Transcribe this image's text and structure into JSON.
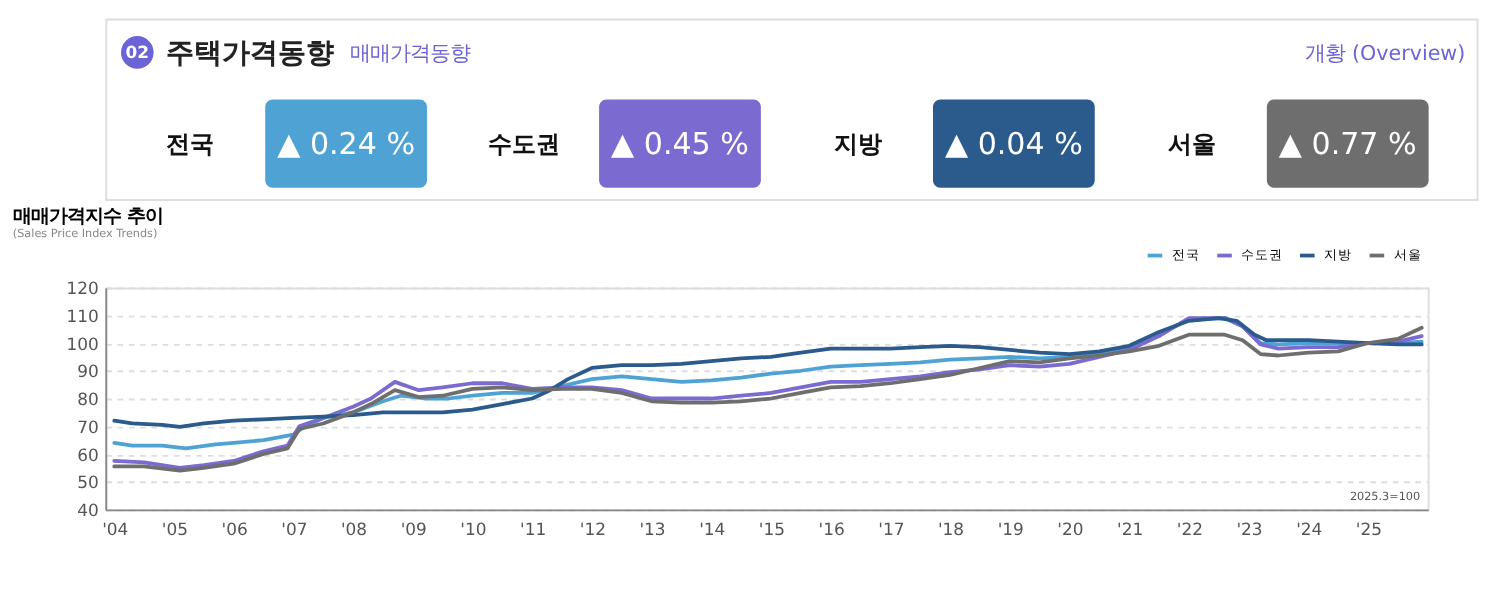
{
  "chart_data": [
    {
      "type": "other",
      "title": "주택가격동향",
      "subtitle": "매매가격동향",
      "annotations": [
        "02",
        "개황 (Overview)"
      ],
      "categories": [
        "전국",
        "수도권",
        "지방",
        "서울"
      ],
      "value_labels": [
        "▲ 0.24 %",
        "▲ 0.45 %",
        "▲ 0.04 %",
        "▲ 0.77 %"
      ],
      "colors": [
        "#4fa3d4",
        "#7b6bd0",
        "#2b5a8c",
        "#6e6e6e"
      ]
    },
    {
      "type": "line",
      "title": "매매가격지수 추이",
      "subtitle": "(Sales Price Index Trends)",
      "annotations": [
        "2025.3=100"
      ],
      "xlim": [
        2003.85,
        2026.0
      ],
      "xticks": [
        {
          "value": 2004,
          "label": "'04"
        },
        {
          "value": 2005,
          "label": "'05"
        },
        {
          "value": 2006,
          "label": "'06"
        },
        {
          "value": 2007,
          "label": "'07"
        },
        {
          "value": 2008,
          "label": "'08"
        },
        {
          "value": 2009,
          "label": "'09"
        },
        {
          "value": 2010,
          "label": "'10"
        },
        {
          "value": 2011,
          "label": "'11"
        },
        {
          "value": 2012,
          "label": "'12"
        },
        {
          "value": 2013,
          "label": "'13"
        },
        {
          "value": 2014,
          "label": "'14"
        },
        {
          "value": 2015,
          "label": "'15"
        },
        {
          "value": 2016,
          "label": "'16"
        },
        {
          "value": 2017,
          "label": "'17"
        },
        {
          "value": 2018,
          "label": "'18"
        },
        {
          "value": 2019,
          "label": "'19"
        },
        {
          "value": 2020,
          "label": "'20"
        },
        {
          "value": 2021,
          "label": "'21"
        },
        {
          "value": 2022,
          "label": "'22"
        },
        {
          "value": 2023,
          "label": "'23"
        },
        {
          "value": 2024,
          "label": "'24"
        },
        {
          "value": 2025,
          "label": "'25"
        }
      ],
      "ylim": [
        40,
        120
      ],
      "yticks": [
        40,
        50,
        60,
        70,
        80,
        90,
        100,
        110,
        120
      ],
      "grid": "y",
      "legend": "top right",
      "marker": "none",
      "line_style": "solid",
      "series": [
        {
          "name": "전국",
          "color": "#4fa3d4",
          "x": [
            2004.0,
            2004.3,
            2004.8,
            2005.2,
            2005.7,
            2006.0,
            2006.5,
            2007.0,
            2007.2,
            2007.5,
            2008.0,
            2008.5,
            2008.8,
            2009.2,
            2009.6,
            2010.0,
            2010.5,
            2011.0,
            2011.5,
            2012.0,
            2012.5,
            2013.0,
            2013.5,
            2014.0,
            2014.5,
            2015.0,
            2015.5,
            2016.0,
            2016.5,
            2017.0,
            2017.5,
            2018.0,
            2018.5,
            2019.0,
            2019.5,
            2020.0,
            2020.5,
            2021.0,
            2021.5,
            2022.0,
            2022.6,
            2022.9,
            2023.2,
            2023.5,
            2024.0,
            2024.5,
            2025.0,
            2025.5,
            2025.9
          ],
          "values": [
            64,
            63,
            63,
            62,
            63.5,
            64,
            65,
            67,
            70,
            73,
            75,
            79,
            81,
            80,
            80,
            81,
            82,
            82,
            84.5,
            87,
            88,
            87,
            86,
            86.5,
            87.5,
            89,
            90,
            91.5,
            92,
            92.5,
            93,
            94,
            94.5,
            95,
            94.5,
            95,
            96,
            98,
            103,
            108.5,
            109,
            106,
            100,
            99.5,
            100,
            100,
            100,
            100,
            100.5
          ]
        },
        {
          "name": "수도권",
          "color": "#7b6bd0",
          "x": [
            2004.0,
            2004.5,
            2005.1,
            2005.5,
            2006.0,
            2006.5,
            2006.9,
            2007.1,
            2007.5,
            2008.0,
            2008.3,
            2008.7,
            2009.1,
            2009.5,
            2010.0,
            2010.5,
            2011.0,
            2011.5,
            2012.0,
            2012.5,
            2013.0,
            2013.5,
            2014.0,
            2014.5,
            2015.0,
            2015.5,
            2016.0,
            2016.5,
            2017.0,
            2017.5,
            2018.0,
            2018.5,
            2019.0,
            2019.5,
            2020.0,
            2020.5,
            2021.0,
            2021.5,
            2022.0,
            2022.6,
            2022.9,
            2023.2,
            2023.5,
            2024.0,
            2024.5,
            2025.0,
            2025.5,
            2025.9
          ],
          "values": [
            57.5,
            57,
            55,
            56,
            57.5,
            61,
            63,
            70,
            73,
            77,
            80,
            86,
            83,
            84,
            85.5,
            85.5,
            83.5,
            84,
            84,
            83,
            80,
            80,
            80,
            81,
            82,
            84,
            86,
            86,
            87,
            88,
            89.5,
            90.5,
            92,
            91.5,
            92.5,
            95,
            97.5,
            102.5,
            109,
            109,
            106,
            99.5,
            98,
            98.5,
            98.5,
            100,
            100.5,
            102.5
          ]
        },
        {
          "name": "지방",
          "color": "#2b5a8c",
          "x": [
            2004.0,
            2004.3,
            2004.8,
            2005.1,
            2005.5,
            2006.0,
            2006.5,
            2007.0,
            2007.5,
            2008.0,
            2008.5,
            2009.0,
            2009.5,
            2010.0,
            2010.5,
            2011.0,
            2011.3,
            2011.6,
            2012.0,
            2012.5,
            2013.0,
            2013.5,
            2014.0,
            2014.5,
            2015.0,
            2015.5,
            2016.0,
            2016.5,
            2017.0,
            2017.5,
            2018.0,
            2018.5,
            2019.0,
            2019.5,
            2020.0,
            2020.5,
            2021.0,
            2021.5,
            2022.0,
            2022.5,
            2022.8,
            2023.1,
            2023.3,
            2023.7,
            2024.0,
            2024.5,
            2025.0,
            2025.5,
            2025.9
          ],
          "values": [
            72,
            71,
            70.5,
            69.8,
            71,
            72,
            72.5,
            73,
            73.5,
            74,
            75,
            75,
            75,
            76,
            78,
            80,
            83,
            87,
            91,
            92,
            92,
            92.5,
            93.5,
            94.5,
            95,
            96.5,
            98,
            98,
            98,
            98.5,
            99,
            98.5,
            97.5,
            96.5,
            96,
            97,
            99,
            104,
            108,
            109,
            108,
            103,
            101,
            101,
            101,
            100.5,
            100,
            99.5,
            99.5
          ]
        },
        {
          "name": "서울",
          "color": "#6e6e6e",
          "x": [
            2004.0,
            2004.5,
            2005.1,
            2005.5,
            2006.0,
            2006.5,
            2006.9,
            2007.1,
            2007.5,
            2008.0,
            2008.3,
            2008.7,
            2009.1,
            2009.5,
            2010.0,
            2010.5,
            2011.0,
            2011.5,
            2012.0,
            2012.5,
            2013.0,
            2013.5,
            2014.0,
            2014.5,
            2015.0,
            2015.5,
            2016.0,
            2016.5,
            2017.0,
            2017.5,
            2018.0,
            2018.5,
            2019.0,
            2019.5,
            2020.0,
            2020.5,
            2021.0,
            2021.5,
            2022.0,
            2022.6,
            2022.9,
            2023.2,
            2023.5,
            2024.0,
            2024.5,
            2025.0,
            2025.5,
            2025.9
          ],
          "values": [
            55.5,
            55.5,
            54,
            55,
            56.5,
            60,
            62,
            69,
            71,
            75,
            78,
            83,
            80.5,
            81,
            83.5,
            84,
            83,
            83.5,
            83.5,
            82,
            79,
            78.5,
            78.5,
            79,
            80,
            82,
            84,
            84.5,
            85.5,
            87,
            88.5,
            91,
            93.5,
            93,
            94.5,
            95.5,
            97,
            99,
            103,
            103,
            101,
            96,
            95.5,
            96.5,
            97,
            100,
            101.5,
            105.5
          ]
        }
      ]
    }
  ]
}
